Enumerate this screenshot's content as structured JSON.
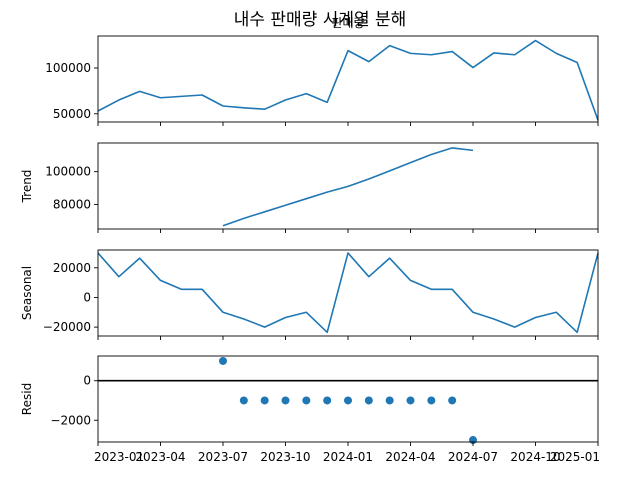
{
  "chart_data": {
    "type": "line",
    "title": "내수 판매량 시계열 분해",
    "overlap_label": "판매량",
    "x_ticks": [
      "2023-01",
      "2023-04",
      "2023-07",
      "2023-10",
      "2024-01",
      "2024-04",
      "2024-07",
      "2024-10",
      "2025-01"
    ],
    "dates": [
      "2023-01",
      "2023-02",
      "2023-03",
      "2023-04",
      "2023-05",
      "2023-06",
      "2023-07",
      "2023-08",
      "2023-09",
      "2023-10",
      "2023-11",
      "2023-12",
      "2024-01",
      "2024-02",
      "2024-03",
      "2024-04",
      "2024-05",
      "2024-06",
      "2024-07",
      "2024-08",
      "2024-09",
      "2024-10",
      "2024-11",
      "2024-12",
      "2025-01"
    ],
    "xlim": [
      "2023-01",
      "2025-01"
    ],
    "panels": [
      {
        "key": "observed",
        "ylabel": "",
        "ylim": [
          41000,
          135000
        ],
        "yticks": [
          50000,
          100000
        ],
        "ytick_labels": [
          "50000",
          "100000"
        ],
        "kind": "line",
        "values": [
          53000,
          65000,
          74500,
          67500,
          69000,
          70500,
          58500,
          56500,
          55000,
          65000,
          72000,
          62500,
          119000,
          107000,
          124500,
          116000,
          114500,
          118000,
          100500,
          116500,
          114500,
          130000,
          116000,
          106000,
          43000
        ]
      },
      {
        "key": "trend",
        "ylabel": "Trend",
        "ylim": [
          65000,
          117500
        ],
        "yticks": [
          80000,
          100000
        ],
        "ytick_labels": [
          "80000",
          "100000"
        ],
        "kind": "line",
        "values": [
          null,
          null,
          null,
          null,
          null,
          null,
          67000,
          71500,
          75500,
          79500,
          83500,
          87500,
          91000,
          95500,
          100500,
          105500,
          110500,
          114500,
          113000,
          null,
          null,
          null,
          null,
          null,
          null
        ]
      },
      {
        "key": "seasonal",
        "ylabel": "Seasonal",
        "ylim": [
          -26000,
          32000
        ],
        "yticks": [
          20000,
          0,
          -20000
        ],
        "ytick_labels": [
          "20000",
          "0",
          "−20000"
        ],
        "kind": "line",
        "values": [
          30000,
          14000,
          26500,
          11500,
          5500,
          5500,
          -10000,
          -14500,
          -20000,
          -13500,
          -10000,
          -23500,
          30000,
          14000,
          26500,
          11500,
          5500,
          5500,
          -10000,
          -14500,
          -20000,
          -13500,
          -10000,
          -23500,
          30000
        ]
      },
      {
        "key": "resid",
        "ylabel": "Resid",
        "ylim": [
          -3100,
          1250
        ],
        "yticks": [
          0,
          -2000
        ],
        "ytick_labels": [
          "0",
          "−2000"
        ],
        "kind": "scatter",
        "zero_line": true,
        "values": [
          null,
          null,
          null,
          null,
          null,
          null,
          1000,
          -1000,
          -1000,
          -1000,
          -1000,
          -1000,
          -1000,
          -1000,
          -1000,
          -1000,
          -1000,
          -1000,
          -3000,
          null,
          null,
          null,
          null,
          null,
          null
        ]
      }
    ]
  }
}
